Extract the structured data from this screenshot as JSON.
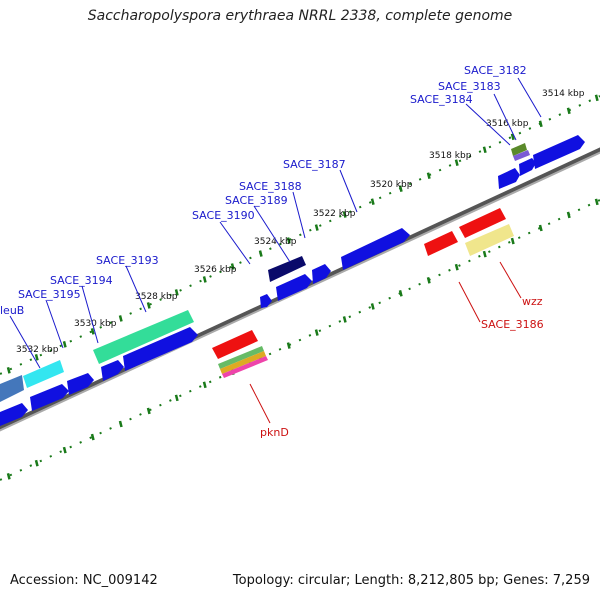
{
  "title": "Saccharopolyspora erythraea NRRL 2338, complete genome",
  "footer": {
    "accession": "Accession: NC_009142",
    "summary": "Topology: circular; Length: 8,212,805 bp; Genes: 7,259"
  },
  "scale_labels": [
    "3514 kbp",
    "3516 kbp",
    "3518 kbp",
    "3520 kbp",
    "3522 kbp",
    "3524 kbp",
    "3526 kbp",
    "3528 kbp",
    "3530 kbp",
    "3532 kbp"
  ],
  "gene_labels_forward": [
    "SACE_3182",
    "SACE_3183",
    "SACE_3184",
    "SACE_3187",
    "SACE_3188",
    "SACE_3189",
    "SACE_3190",
    "SACE_3193",
    "SACE_3194",
    "SACE_3195",
    "leuB"
  ],
  "gene_labels_reverse": [
    "wzz",
    "SACE_3186",
    "pknD"
  ],
  "colors": {
    "forward_label": "#1a1acc",
    "reverse_label": "#cc1111",
    "gene_blue": "#1010e0",
    "gene_red": "#ee1111",
    "backbone": "#777777",
    "tick_green": "#1a7a1a"
  }
}
